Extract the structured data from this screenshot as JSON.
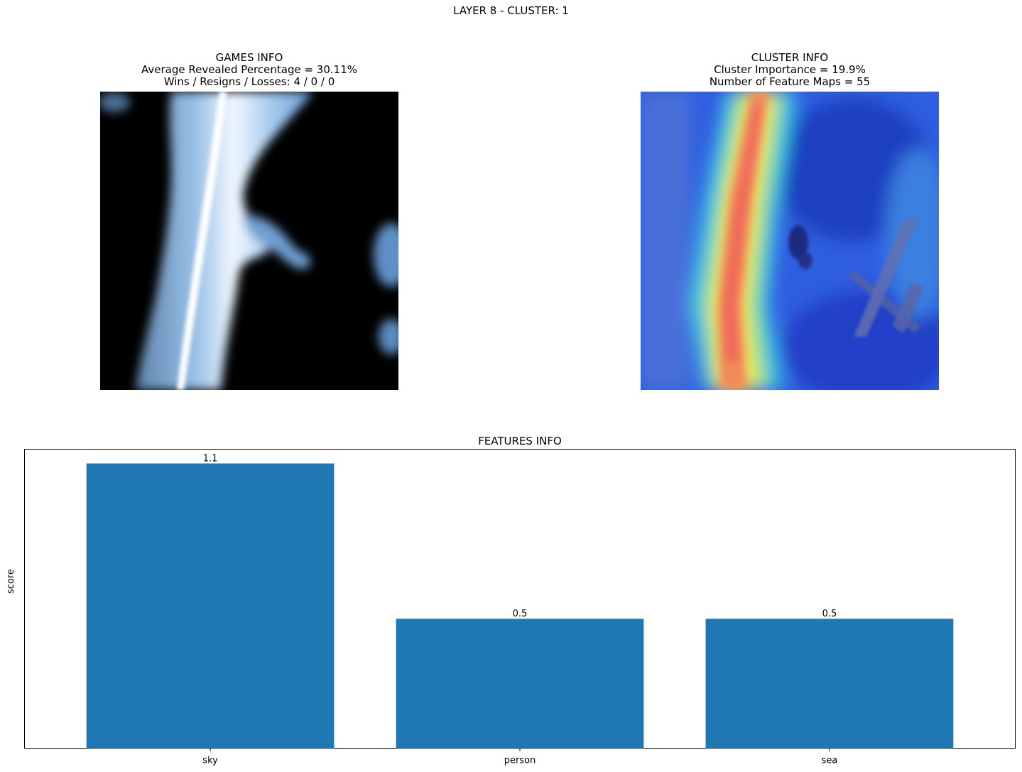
{
  "suptitle": "LAYER 8 - CLUSTER: 1",
  "games_info": {
    "title": "GAMES INFO",
    "line1": "Average Revealed Percentage = 30.11%",
    "line2": "Wins / Resigns / Losses: 4 / 0 / 0"
  },
  "cluster_info": {
    "title": "CLUSTER INFO",
    "line1": "Cluster Importance = 19.9%",
    "line2": "Number of Feature Maps = 55"
  },
  "chart_data": {
    "type": "bar",
    "title": "FEATURES INFO",
    "xlabel": "",
    "ylabel": "score",
    "categories": [
      "sky",
      "person",
      "sea"
    ],
    "values": [
      1.1,
      0.5,
      0.5
    ],
    "value_labels": [
      "1.1",
      "0.5",
      "0.5"
    ],
    "ylim": [
      0,
      1.155
    ],
    "yticks_visible": false,
    "grid": false,
    "bar_color": "#1f77b4"
  }
}
